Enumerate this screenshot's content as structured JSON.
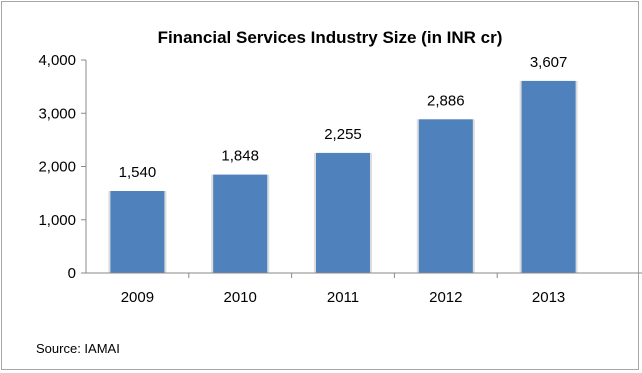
{
  "chart_data": {
    "type": "bar",
    "title": "Financial Services Industry Size (in INR cr)",
    "categories": [
      "2009",
      "2010",
      "2011",
      "2012",
      "2013"
    ],
    "values": [
      1540,
      1848,
      2255,
      2886,
      3607
    ],
    "data_labels": [
      "1,540",
      "1,848",
      "2,255",
      "2,886",
      "3,607"
    ],
    "y_ticks": [
      "0",
      "1,000",
      "2,000",
      "3,000",
      "4,000"
    ],
    "ylim": [
      0,
      4000
    ],
    "xlabel": "",
    "ylabel": "",
    "grid": false,
    "legend": "none",
    "bar_color": "#4f81bd"
  },
  "source": "Source: IAMAI"
}
